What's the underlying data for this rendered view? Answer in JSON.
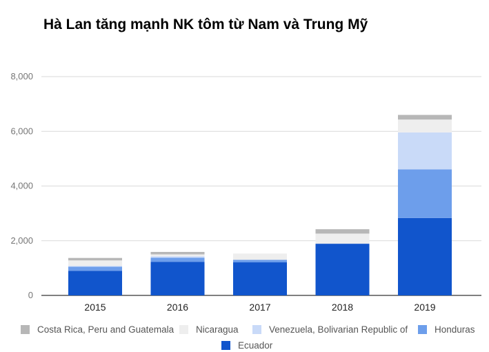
{
  "title": "Hà Lan tăng mạnh NK tôm từ Nam và Trung Mỹ",
  "chart_data": {
    "type": "bar",
    "stacked": true,
    "title": "Hà Lan tăng mạnh NK tôm từ Nam và Trung Mỹ",
    "xlabel": "",
    "ylabel": "",
    "ylim": [
      0,
      8000
    ],
    "yticks": [
      0,
      2000,
      4000,
      6000,
      8000
    ],
    "ytick_labels": [
      "0",
      "2,000",
      "4,000",
      "6,000",
      "8,000"
    ],
    "grid": true,
    "legend_position": "bottom",
    "categories": [
      "2015",
      "2016",
      "2017",
      "2018",
      "2019"
    ],
    "series": [
      {
        "name": "Ecuador",
        "color": "#1155cc",
        "values": [
          900,
          1230,
          1210,
          1890,
          2830
        ]
      },
      {
        "name": "Honduras",
        "color": "#6d9eeb",
        "values": [
          150,
          150,
          90,
          0,
          1780
        ]
      },
      {
        "name": "Venezuela, Bolivarian Republic of",
        "color": "#c9daf8",
        "values": [
          30,
          50,
          0,
          0,
          1350
        ]
      },
      {
        "name": "Nicaragua",
        "color": "#eeeeee",
        "values": [
          200,
          70,
          230,
          370,
          470
        ]
      },
      {
        "name": "Costa Rica, Peru and Guatemala",
        "color": "#b7b7b7",
        "values": [
          90,
          90,
          0,
          160,
          170
        ]
      }
    ],
    "legend_order": [
      "Costa Rica, Peru and Guatemala",
      "Nicaragua",
      "Venezuela, Bolivarian Republic of",
      "Honduras",
      "Ecuador"
    ]
  }
}
